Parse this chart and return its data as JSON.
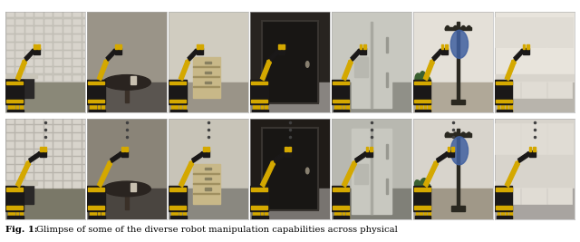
{
  "figure_width": 6.4,
  "figure_height": 2.67,
  "dpi": 100,
  "n_cols": 7,
  "n_rows": 2,
  "bg_color": "#ffffff",
  "caption_bold": "Fig. 1:",
  "caption_text": " Glimpse of some of the diverse robot manipulation capabilities across physical",
  "caption_fontsize": 7.2,
  "top_scenes": [
    {
      "floor": "#8a8878",
      "wall": "#c8c5bc",
      "accent": "#1a1a1a",
      "robot_y": "#d4a800",
      "robot_b": "#1a1818"
    },
    {
      "floor": "#5a5550",
      "wall": "#9a9488",
      "accent": "#2a2820",
      "robot_y": "#d4a800",
      "robot_b": "#1a1818"
    },
    {
      "floor": "#9a9488",
      "wall": "#d0ccc0",
      "accent": "#3a3530",
      "robot_y": "#d4a800",
      "robot_b": "#1a1818"
    },
    {
      "floor": "#888480",
      "wall": "#282420",
      "accent": "#181614",
      "robot_y": "#d4a800",
      "robot_b": "#1a1818"
    },
    {
      "floor": "#909088",
      "wall": "#c8c8c0",
      "accent": "#888888",
      "robot_y": "#d4a800",
      "robot_b": "#1a1818"
    },
    {
      "floor": "#b0a898",
      "wall": "#e4e0d8",
      "accent": "#604838",
      "robot_y": "#d4a800",
      "robot_b": "#1a1818"
    },
    {
      "floor": "#b8b4ac",
      "wall": "#e8e4dc",
      "accent": "#d0ccc4",
      "robot_y": "#d4a800",
      "robot_b": "#1a1818"
    }
  ],
  "bot_scenes": [
    {
      "floor": "#7a7868",
      "wall": "#b8b5ac",
      "accent": "#1a1a1a",
      "robot_y": "#d4a800",
      "robot_b": "#1a1818"
    },
    {
      "floor": "#4a4540",
      "wall": "#8a8478",
      "accent": "#282418",
      "robot_y": "#d4a800",
      "robot_b": "#1a1818"
    },
    {
      "floor": "#8a8880",
      "wall": "#c8c4b8",
      "accent": "#302c28",
      "robot_y": "#d4a800",
      "robot_b": "#1a1818"
    },
    {
      "floor": "#787470",
      "wall": "#201c18",
      "accent": "#141210",
      "robot_y": "#d4a800",
      "robot_b": "#1a1818"
    },
    {
      "floor": "#808078",
      "wall": "#b8b8b0",
      "accent": "#808080",
      "robot_y": "#d4a800",
      "robot_b": "#1a1818"
    },
    {
      "floor": "#a09888",
      "wall": "#d8d4cc",
      "accent": "#503828",
      "robot_y": "#d4a800",
      "robot_b": "#1a1818"
    },
    {
      "floor": "#a8a4a0",
      "wall": "#d8d4cc",
      "accent": "#c0bcb4",
      "robot_y": "#d4a800",
      "robot_b": "#1a1818"
    }
  ]
}
